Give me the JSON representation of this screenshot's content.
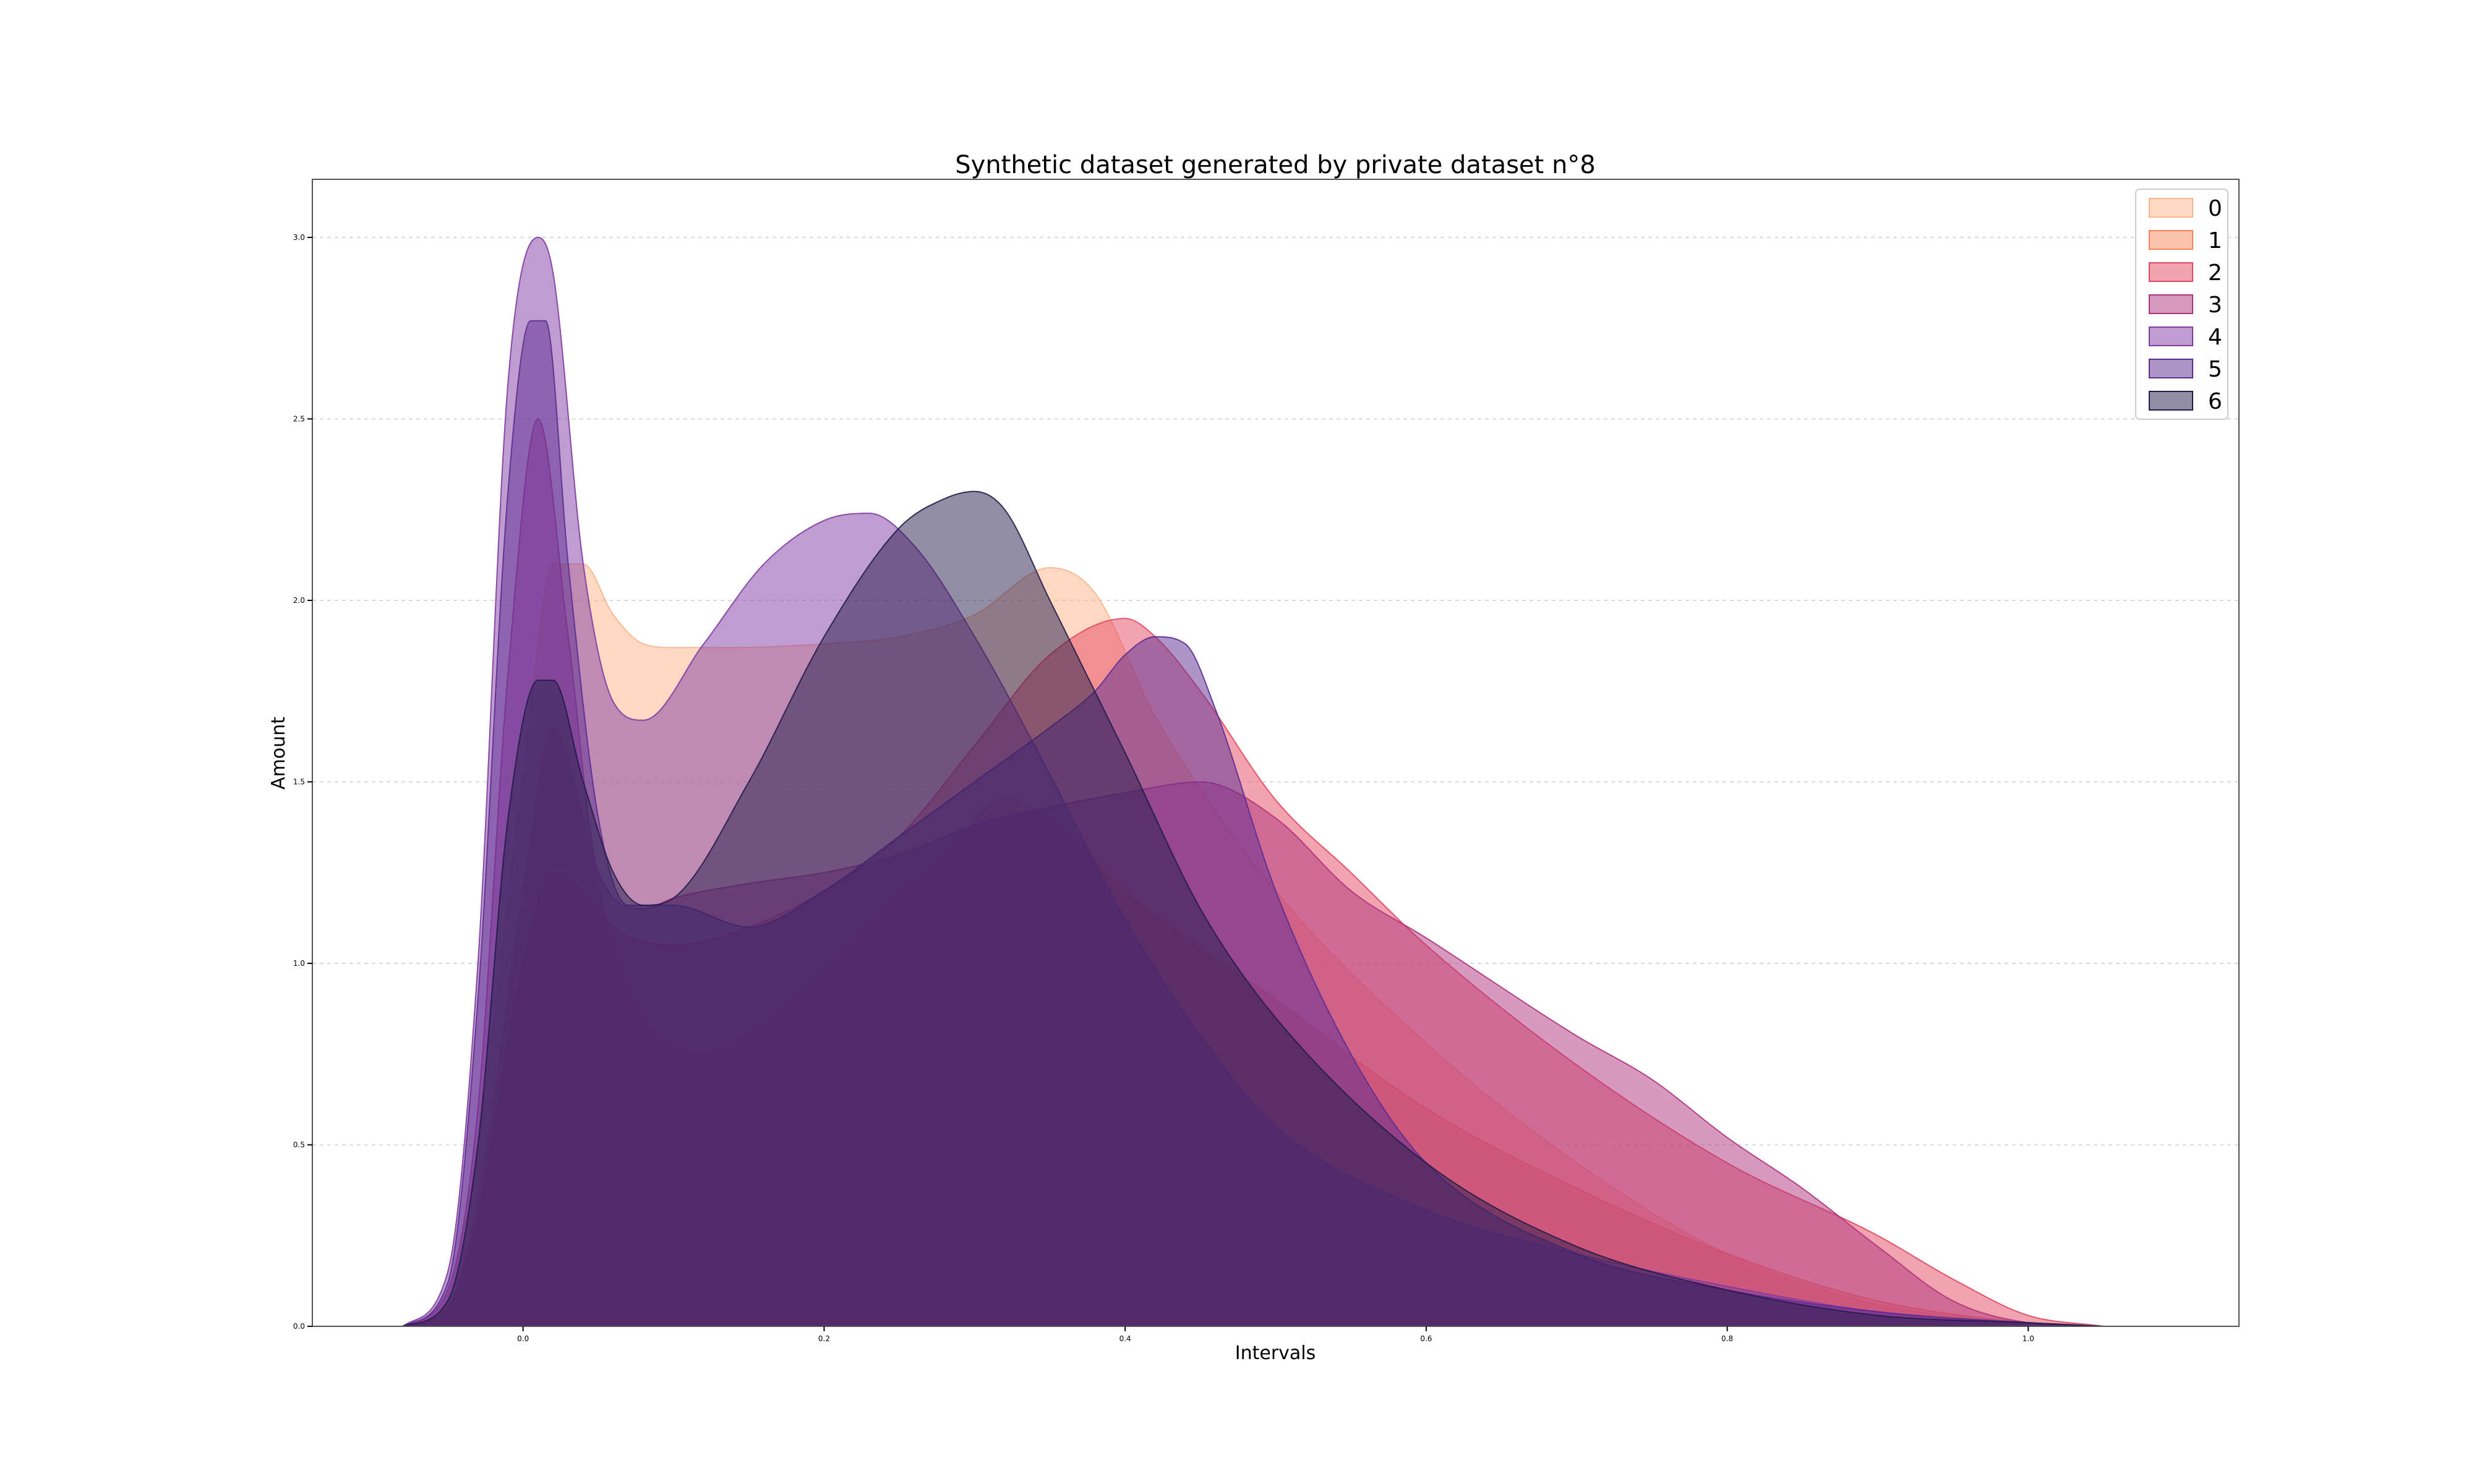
{
  "chart_data": {
    "type": "area",
    "title": "Synthetic dataset generated by private dataset n°8",
    "xlabel": "Intervals",
    "ylabel": "Amount",
    "xlim": [
      -0.14,
      1.14
    ],
    "ylim": [
      0,
      3.16
    ],
    "xticks": [
      0.0,
      0.2,
      0.4,
      0.6,
      0.8,
      1.0
    ],
    "xtick_labels": [
      "0.0",
      "0.2",
      "0.4",
      "0.6",
      "0.8",
      "1.0"
    ],
    "yticks": [
      0.0,
      0.5,
      1.0,
      1.5,
      2.0,
      2.5,
      3.0
    ],
    "ytick_labels": [
      "0.0",
      "0.5",
      "1.0",
      "1.5",
      "2.0",
      "2.5",
      "3.0"
    ],
    "grid": "horizontal",
    "legend_position": "top-right",
    "series": [
      {
        "name": "0",
        "color": "#fcb48a",
        "x": [
          -0.08,
          -0.05,
          -0.03,
          0.0,
          0.02,
          0.04,
          0.06,
          0.08,
          0.1,
          0.14,
          0.2,
          0.25,
          0.3,
          0.35,
          0.38,
          0.42,
          0.5,
          0.6,
          0.7,
          0.8,
          0.9,
          1.0,
          1.05
        ],
        "y": [
          0,
          0.08,
          0.5,
          1.5,
          2.1,
          2.1,
          1.96,
          1.88,
          1.87,
          1.87,
          1.88,
          1.9,
          1.96,
          2.09,
          2.02,
          1.68,
          1.2,
          0.78,
          0.45,
          0.2,
          0.06,
          0.01,
          0
        ]
      },
      {
        "name": "1",
        "color": "#f6845c",
        "x": [
          -0.08,
          -0.05,
          -0.03,
          0.0,
          0.02,
          0.04,
          0.06,
          0.08,
          0.12,
          0.18,
          0.24,
          0.28,
          0.32,
          0.35,
          0.4,
          0.5,
          0.6,
          0.7,
          0.8,
          0.9,
          1.0,
          1.05
        ],
        "y": [
          0,
          0.05,
          0.35,
          1.2,
          1.65,
          1.4,
          1.05,
          0.85,
          0.75,
          0.9,
          1.15,
          1.3,
          1.45,
          1.4,
          1.2,
          0.9,
          0.6,
          0.38,
          0.2,
          0.07,
          0.01,
          0
        ]
      },
      {
        "name": "2",
        "color": "#e3485f",
        "x": [
          -0.08,
          -0.05,
          -0.03,
          0.0,
          0.02,
          0.04,
          0.06,
          0.1,
          0.15,
          0.2,
          0.25,
          0.3,
          0.35,
          0.4,
          0.42,
          0.45,
          0.5,
          0.55,
          0.6,
          0.7,
          0.8,
          0.9,
          0.95,
          1.0,
          1.05
        ],
        "y": [
          0,
          0.05,
          0.3,
          1.0,
          1.25,
          1.2,
          1.1,
          1.05,
          1.1,
          1.2,
          1.35,
          1.6,
          1.85,
          1.95,
          1.9,
          1.75,
          1.45,
          1.25,
          1.05,
          0.72,
          0.45,
          0.25,
          0.13,
          0.03,
          0
        ]
      },
      {
        "name": "3",
        "color": "#b0337e",
        "x": [
          -0.08,
          -0.05,
          -0.03,
          -0.01,
          0.01,
          0.03,
          0.05,
          0.08,
          0.1,
          0.15,
          0.2,
          0.25,
          0.3,
          0.35,
          0.4,
          0.45,
          0.5,
          0.55,
          0.6,
          0.7,
          0.75,
          0.8,
          0.85,
          0.9,
          0.95,
          1.0,
          1.05
        ],
        "y": [
          0,
          0.1,
          0.6,
          1.8,
          2.5,
          1.9,
          1.25,
          1.15,
          1.18,
          1.22,
          1.25,
          1.3,
          1.38,
          1.43,
          1.47,
          1.5,
          1.4,
          1.2,
          1.07,
          0.8,
          0.68,
          0.52,
          0.38,
          0.22,
          0.07,
          0.01,
          0
        ]
      },
      {
        "name": "4",
        "color": "#823ba1",
        "x": [
          -0.08,
          -0.05,
          -0.03,
          -0.01,
          0.01,
          0.02,
          0.04,
          0.06,
          0.08,
          0.12,
          0.16,
          0.2,
          0.23,
          0.26,
          0.3,
          0.35,
          0.4,
          0.45,
          0.5,
          0.6,
          0.7,
          0.8,
          0.9,
          1.0,
          1.05
        ],
        "y": [
          0,
          0.15,
          1.0,
          2.6,
          3.0,
          2.9,
          2.1,
          1.72,
          1.67,
          1.88,
          2.1,
          2.22,
          2.24,
          2.15,
          1.9,
          1.52,
          1.12,
          0.8,
          0.55,
          0.32,
          0.2,
          0.11,
          0.04,
          0.01,
          0
        ]
      },
      {
        "name": "5",
        "color": "#5c2c91",
        "x": [
          -0.08,
          -0.05,
          -0.03,
          -0.01,
          0.005,
          0.015,
          0.03,
          0.05,
          0.07,
          0.1,
          0.15,
          0.2,
          0.25,
          0.3,
          0.35,
          0.38,
          0.4,
          0.42,
          0.44,
          0.46,
          0.5,
          0.55,
          0.6,
          0.7,
          0.8,
          0.9,
          1.0,
          1.05
        ],
        "y": [
          0,
          0.12,
          0.9,
          2.3,
          2.77,
          2.77,
          2.1,
          1.4,
          1.16,
          1.16,
          1.1,
          1.2,
          1.35,
          1.5,
          1.65,
          1.75,
          1.85,
          1.9,
          1.88,
          1.7,
          1.2,
          0.75,
          0.45,
          0.2,
          0.1,
          0.04,
          0.01,
          0
        ]
      },
      {
        "name": "6",
        "color": "#231b4a",
        "x": [
          -0.08,
          -0.05,
          -0.03,
          -0.01,
          0.01,
          0.02,
          0.04,
          0.06,
          0.08,
          0.1,
          0.15,
          0.2,
          0.25,
          0.28,
          0.3,
          0.32,
          0.35,
          0.4,
          0.45,
          0.5,
          0.6,
          0.7,
          0.8,
          0.9,
          1.0,
          1.05
        ],
        "y": [
          0,
          0.07,
          0.5,
          1.4,
          1.78,
          1.78,
          1.5,
          1.25,
          1.16,
          1.18,
          1.5,
          1.9,
          2.2,
          2.28,
          2.3,
          2.25,
          2.0,
          1.58,
          1.15,
          0.85,
          0.45,
          0.22,
          0.1,
          0.03,
          0.01,
          0
        ]
      }
    ]
  }
}
